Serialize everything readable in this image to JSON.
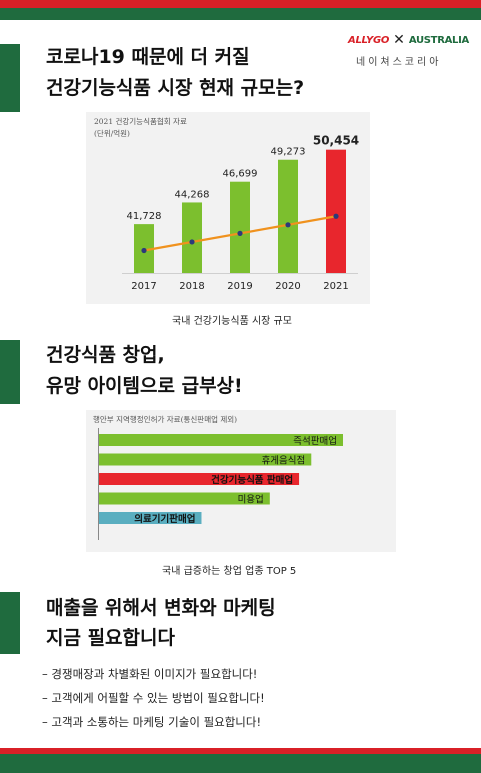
{
  "brand": {
    "left": "ALLYGO",
    "separator": "✕",
    "right": "AUSTRALIA",
    "subtitle": "네이쳐스코리아"
  },
  "section1": {
    "title_line1": "코로나19 때문에 더 커질",
    "title_line2": "건강기능식품 시장 현재 규모는?"
  },
  "section2": {
    "title_line1": "건강식품 창업,",
    "title_line2": "유망 아이템으로 급부상!"
  },
  "section3": {
    "title_line1": "매출을 위해서 변화와 마케팅",
    "title_line2": "지금 필요합니다",
    "bullets": [
      "– 경쟁매장과 차별화된 이미지가 필요합니다!",
      "– 고객에게 어필할 수 있는 방법이 필요합니다!",
      "– 고객과 소통하는 마케팅 기술이 필요합니다!"
    ]
  },
  "colors": {
    "accent_green": "#1f6b3e",
    "accent_red": "#d92027",
    "bar_green": "#7cbf2e",
    "bar_red": "#e8262d",
    "bar_teal": "#5aaec0",
    "trend_orange": "#f0921e",
    "trend_point": "#2b3a7a"
  },
  "chart_data": [
    {
      "type": "bar",
      "source_line1": "2021 건강기능식품협회 자료",
      "source_line2": "(단위/억원)",
      "caption": "국내 건강기능식품 시장 규모",
      "categories": [
        "2017",
        "2018",
        "2019",
        "2020",
        "2021"
      ],
      "values": [
        41728,
        44268,
        46699,
        49273,
        50454
      ],
      "value_labels": [
        "41,728",
        "44,268",
        "46,699",
        "49,273",
        "50,454"
      ],
      "highlight_index": 4,
      "trend_line": true
    },
    {
      "type": "bar",
      "orientation": "horizontal",
      "source": "행안부 지역행정인허가 자료(통신판매업 제외)",
      "caption": "국내 급증하는 창업 업종 TOP 5",
      "categories": [
        "즉석판매업",
        "휴게음식점",
        "건강기능식품 판매업",
        "미용업",
        "의료기기판매업"
      ],
      "relative_values": [
        1.0,
        0.87,
        0.82,
        0.7,
        0.42
      ],
      "bold": [
        false,
        false,
        true,
        false,
        true
      ],
      "bar_colors": [
        "#7cbf2e",
        "#7cbf2e",
        "#e8262d",
        "#7cbf2e",
        "#5aaec0"
      ]
    }
  ]
}
